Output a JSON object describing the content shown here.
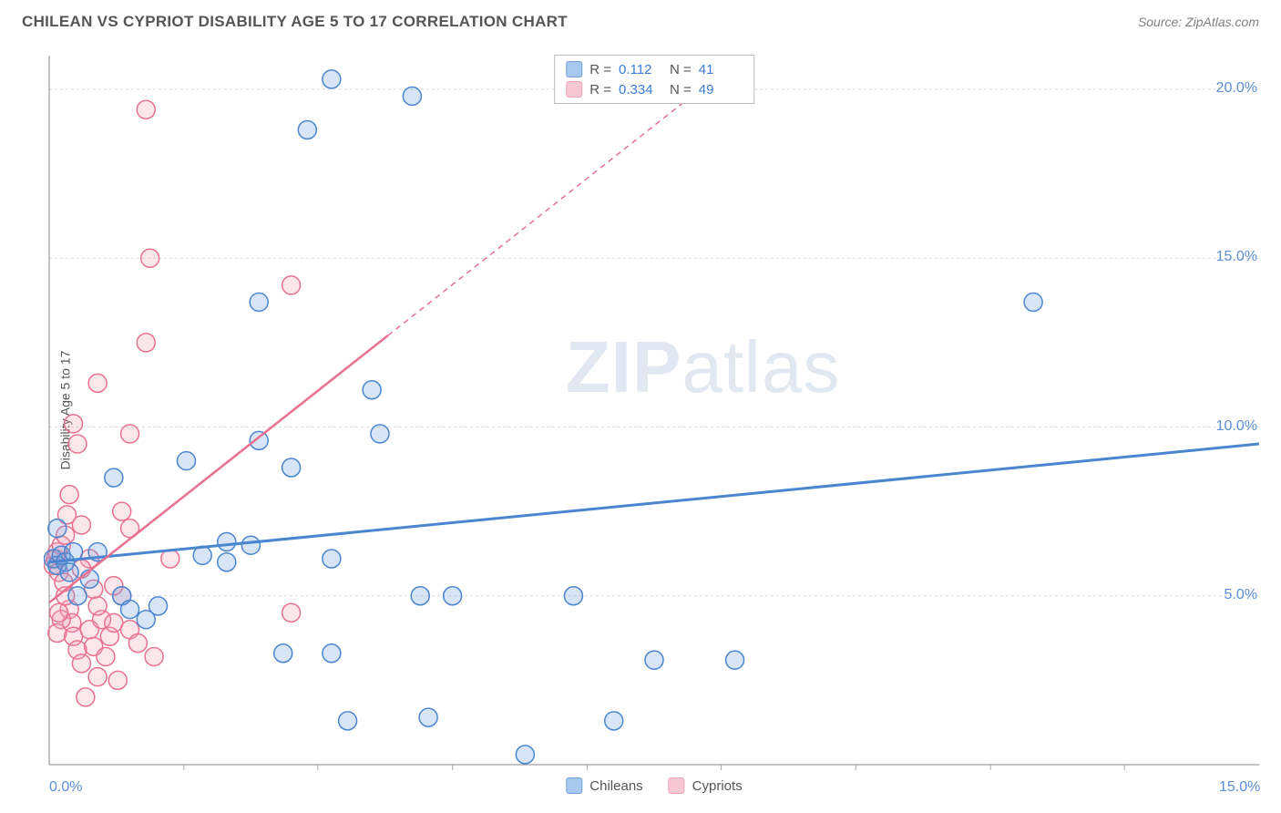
{
  "header": {
    "title": "CHILEAN VS CYPRIOT DISABILITY AGE 5 TO 17 CORRELATION CHART",
    "source": "Source: ZipAtlas.com"
  },
  "watermark": {
    "zip": "ZIP",
    "atlas": "atlas"
  },
  "chart": {
    "type": "scatter",
    "y_axis_label": "Disability Age 5 to 17",
    "background_color": "#ffffff",
    "grid_color": "#d9d9d9",
    "axis_color": "#888888",
    "tick_color": "#aaaaaa",
    "xlim": [
      0,
      15
    ],
    "ylim": [
      0,
      21
    ],
    "x_ticks_major": [
      0,
      15
    ],
    "x_ticks_minor": [
      1.67,
      3.33,
      5.0,
      6.67,
      8.33,
      10.0,
      11.67,
      13.33
    ],
    "x_tick_labels": [
      "0.0%",
      "15.0%"
    ],
    "y_ticks": [
      5,
      10,
      15,
      20
    ],
    "y_tick_labels": [
      "5.0%",
      "10.0%",
      "15.0%",
      "20.0%"
    ],
    "label_color": "#5b8fd6",
    "label_fontsize": 16,
    "marker_radius": 10,
    "marker_fill_opacity": 0.28,
    "marker_stroke_width": 1.5,
    "series": [
      {
        "name": "Chileans",
        "color": "#6fa3e0",
        "stroke": "#4a86d0",
        "trend": {
          "x1": 0,
          "y1": 6.0,
          "x2": 15,
          "y2": 9.5,
          "width": 3,
          "dashed_from_x": null
        },
        "points": [
          [
            0.05,
            6.1
          ],
          [
            0.1,
            5.9
          ],
          [
            0.15,
            6.2
          ],
          [
            0.2,
            6.0
          ],
          [
            0.25,
            5.7
          ],
          [
            0.3,
            6.3
          ],
          [
            0.1,
            7.0
          ],
          [
            0.35,
            5.0
          ],
          [
            1.7,
            9.0
          ],
          [
            2.6,
            13.7
          ],
          [
            2.6,
            9.6
          ],
          [
            3.5,
            20.3
          ],
          [
            3.2,
            18.8
          ],
          [
            4.0,
            11.1
          ],
          [
            3.0,
            8.8
          ],
          [
            2.2,
            6.6
          ],
          [
            2.2,
            6.0
          ],
          [
            1.35,
            4.7
          ],
          [
            1.9,
            6.2
          ],
          [
            2.5,
            6.5
          ],
          [
            3.5,
            6.1
          ],
          [
            2.9,
            3.3
          ],
          [
            3.7,
            1.3
          ],
          [
            4.6,
            5.0
          ],
          [
            5.0,
            5.0
          ],
          [
            4.5,
            19.8
          ],
          [
            4.1,
            9.8
          ],
          [
            3.5,
            3.3
          ],
          [
            4.7,
            1.4
          ],
          [
            5.9,
            0.3
          ],
          [
            6.5,
            5.0
          ],
          [
            7.5,
            3.1
          ],
          [
            8.5,
            3.1
          ],
          [
            7.0,
            1.3
          ],
          [
            12.2,
            13.7
          ],
          [
            0.8,
            8.5
          ],
          [
            0.5,
            5.5
          ],
          [
            0.6,
            6.3
          ],
          [
            0.9,
            5.0
          ],
          [
            1.0,
            4.6
          ],
          [
            1.2,
            4.3
          ]
        ]
      },
      {
        "name": "Cypriots",
        "color": "#f2a4b9",
        "stroke": "#e8718f",
        "trend": {
          "x1": 0,
          "y1": 4.8,
          "x2": 8.6,
          "y2": 21,
          "width": 2.5,
          "dashed_from_x": 4.2
        },
        "points": [
          [
            0.05,
            5.9
          ],
          [
            0.08,
            6.1
          ],
          [
            0.1,
            6.3
          ],
          [
            0.12,
            5.7
          ],
          [
            0.15,
            6.5
          ],
          [
            0.18,
            5.4
          ],
          [
            0.2,
            6.8
          ],
          [
            0.22,
            7.4
          ],
          [
            0.25,
            4.6
          ],
          [
            0.28,
            4.2
          ],
          [
            0.3,
            3.8
          ],
          [
            0.35,
            3.4
          ],
          [
            0.4,
            3.0
          ],
          [
            0.45,
            2.0
          ],
          [
            0.5,
            4.0
          ],
          [
            0.55,
            3.5
          ],
          [
            0.6,
            2.6
          ],
          [
            0.65,
            4.3
          ],
          [
            0.7,
            3.2
          ],
          [
            0.75,
            3.8
          ],
          [
            0.8,
            4.2
          ],
          [
            0.85,
            2.5
          ],
          [
            0.9,
            5.0
          ],
          [
            0.3,
            10.1
          ],
          [
            0.35,
            9.5
          ],
          [
            0.9,
            7.5
          ],
          [
            1.0,
            7.0
          ],
          [
            0.6,
            11.3
          ],
          [
            1.0,
            9.8
          ],
          [
            1.2,
            12.5
          ],
          [
            1.2,
            19.4
          ],
          [
            1.25,
            15.0
          ],
          [
            0.25,
            8.0
          ],
          [
            0.4,
            7.1
          ],
          [
            0.5,
            6.1
          ],
          [
            0.55,
            5.2
          ],
          [
            0.6,
            4.7
          ],
          [
            0.2,
            5.0
          ],
          [
            0.15,
            4.3
          ],
          [
            0.1,
            3.9
          ],
          [
            0.12,
            4.5
          ],
          [
            0.4,
            5.8
          ],
          [
            0.8,
            5.3
          ],
          [
            1.0,
            4.0
          ],
          [
            1.1,
            3.6
          ],
          [
            1.3,
            3.2
          ],
          [
            3.0,
            14.2
          ],
          [
            3.0,
            4.5
          ],
          [
            1.5,
            6.1
          ]
        ]
      }
    ],
    "stats": [
      {
        "swatch": "#a9c8ef",
        "border": "#6fa3e0",
        "R": "0.112",
        "N": "41"
      },
      {
        "swatch": "#f7c8d4",
        "border": "#f2a4b9",
        "R": "0.334",
        "N": "49"
      }
    ],
    "stats_labels": {
      "R": "R  =",
      "N": "N  ="
    },
    "legend": [
      {
        "label": "Chileans",
        "fill": "#a9c8ef",
        "border": "#6fa3e0"
      },
      {
        "label": "Cypriots",
        "fill": "#f7c8d4",
        "border": "#f2a4b9"
      }
    ]
  }
}
